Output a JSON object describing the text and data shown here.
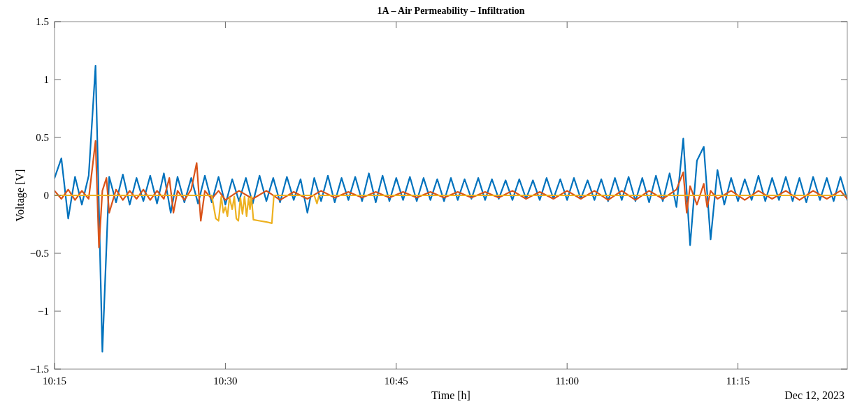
{
  "chart_data": {
    "type": "line",
    "title": "1A – Air Permeability – Infiltration",
    "xlabel": "Time [h]",
    "ylabel": "Voltage [V]",
    "annotations": [
      "Dec 12, 2023"
    ],
    "xlim": [
      10.25,
      11.41
    ],
    "ylim": [
      -1.5,
      1.5
    ],
    "xticks": [
      {
        "value": 10.25,
        "label": "10:15"
      },
      {
        "value": 10.5,
        "label": "10:30"
      },
      {
        "value": 10.75,
        "label": "10:45"
      },
      {
        "value": 11,
        "label": "11:00"
      },
      {
        "value": 11.25,
        "label": "11:15"
      }
    ],
    "yticks": [
      {
        "value": -1.5,
        "label": "−1.5"
      },
      {
        "value": -1,
        "label": "−1"
      },
      {
        "value": -0.5,
        "label": "−0.5"
      },
      0,
      0.5,
      1,
      1.5
    ],
    "grid": false,
    "line_style": "solid",
    "marker": "none",
    "series": [
      {
        "color": "#0072bd",
        "x": [
          10.25,
          10.26,
          10.27,
          10.28,
          10.29,
          10.3,
          10.31,
          10.32,
          10.33,
          10.34,
          10.35,
          10.36,
          10.37,
          10.38,
          10.39,
          10.4,
          10.41,
          10.42,
          10.43,
          10.44,
          10.45,
          10.46,
          10.47,
          10.48,
          10.49,
          10.5,
          10.51,
          10.52,
          10.53,
          10.54,
          10.55,
          10.56,
          10.57,
          10.58,
          10.59,
          10.6,
          10.61,
          10.62,
          10.63,
          10.64,
          10.65,
          10.66,
          10.67,
          10.68,
          10.69,
          10.7,
          10.71,
          10.72,
          10.73,
          10.74,
          10.75,
          10.76,
          10.77,
          10.78,
          10.79,
          10.8,
          10.81,
          10.82,
          10.83,
          10.84,
          10.85,
          10.86,
          10.87,
          10.88,
          10.89,
          10.9,
          10.91,
          10.92,
          10.93,
          10.94,
          10.95,
          10.96,
          10.97,
          10.98,
          10.99,
          11,
          11.01,
          11.02,
          11.03,
          11.04,
          11.05,
          11.06,
          11.07,
          11.08,
          11.09,
          11.1,
          11.11,
          11.12,
          11.13,
          11.14,
          11.15,
          11.16,
          11.17,
          11.18,
          11.19,
          11.2,
          11.21,
          11.22,
          11.23,
          11.24,
          11.25,
          11.26,
          11.27,
          11.28,
          11.29,
          11.3,
          11.31,
          11.32,
          11.33,
          11.34,
          11.35,
          11.36,
          11.37,
          11.38,
          11.39,
          11.4,
          11.41
        ],
        "values": [
          0.15,
          0.32,
          -0.2,
          0.16,
          -0.08,
          0.17,
          1.12,
          -1.35,
          0.16,
          -0.06,
          0.18,
          -0.08,
          0.15,
          -0.05,
          0.17,
          -0.07,
          0.19,
          -0.15,
          0.16,
          -0.06,
          0.15,
          -0.07,
          0.17,
          -0.06,
          0.16,
          -0.08,
          0.14,
          -0.05,
          0.15,
          -0.07,
          0.17,
          -0.05,
          0.15,
          -0.06,
          0.16,
          -0.04,
          0.14,
          -0.15,
          0.15,
          -0.05,
          0.17,
          -0.06,
          0.15,
          -0.04,
          0.16,
          -0.05,
          0.19,
          -0.06,
          0.17,
          -0.05,
          0.15,
          -0.04,
          0.16,
          -0.05,
          0.15,
          -0.04,
          0.14,
          -0.05,
          0.15,
          -0.04,
          0.14,
          -0.03,
          0.15,
          -0.04,
          0.14,
          -0.03,
          0.13,
          -0.04,
          0.14,
          -0.03,
          0.13,
          -0.04,
          0.15,
          -0.03,
          0.14,
          -0.04,
          0.15,
          -0.03,
          0.13,
          -0.04,
          0.14,
          -0.05,
          0.15,
          -0.04,
          0.16,
          -0.05,
          0.15,
          -0.06,
          0.17,
          -0.05,
          0.19,
          -0.1,
          0.49,
          -0.43,
          0.3,
          0.42,
          -0.38,
          0.22,
          -0.08,
          0.15,
          -0.05,
          0.14,
          -0.04,
          0.17,
          -0.05,
          0.15,
          -0.04,
          0.16,
          -0.05,
          0.15,
          -0.06,
          0.16,
          -0.04,
          0.15,
          -0.05,
          0.16,
          -0.04
        ]
      },
      {
        "color": "#d95319",
        "x": [
          10.25,
          10.26,
          10.27,
          10.28,
          10.29,
          10.3,
          10.31,
          10.315,
          10.32,
          10.326,
          10.33,
          10.34,
          10.35,
          10.36,
          10.37,
          10.38,
          10.39,
          10.4,
          10.41,
          10.418,
          10.424,
          10.43,
          10.44,
          10.45,
          10.458,
          10.464,
          10.47,
          10.48,
          10.49,
          10.5,
          10.52,
          10.54,
          10.56,
          10.58,
          10.6,
          10.62,
          10.64,
          10.66,
          10.68,
          10.7,
          10.72,
          10.74,
          10.76,
          10.78,
          10.8,
          10.82,
          10.84,
          10.86,
          10.88,
          10.9,
          10.92,
          10.94,
          10.96,
          10.98,
          11,
          11.02,
          11.04,
          11.06,
          11.08,
          11.1,
          11.12,
          11.14,
          11.16,
          11.17,
          11.175,
          11.18,
          11.19,
          11.2,
          11.205,
          11.21,
          11.22,
          11.24,
          11.26,
          11.28,
          11.3,
          11.32,
          11.34,
          11.36,
          11.38,
          11.4,
          11.41
        ],
        "values": [
          0.04,
          -0.03,
          0.05,
          -0.04,
          0.04,
          -0.03,
          0.47,
          -0.45,
          0.04,
          0.15,
          -0.15,
          0.05,
          -0.04,
          0.04,
          -0.03,
          0.05,
          -0.04,
          0.04,
          -0.03,
          0.15,
          -0.15,
          0.04,
          -0.04,
          0.05,
          0.28,
          -0.22,
          0.04,
          -0.03,
          0.04,
          -0.04,
          0.04,
          -0.03,
          0.04,
          -0.04,
          0.03,
          -0.03,
          0.04,
          -0.02,
          0.03,
          -0.02,
          0.03,
          -0.02,
          0.03,
          -0.02,
          0.03,
          -0.02,
          0.03,
          -0.02,
          0.03,
          -0.02,
          0.04,
          -0.03,
          0.03,
          -0.03,
          0.04,
          -0.03,
          0.04,
          -0.04,
          0.04,
          -0.04,
          0.04,
          -0.03,
          0.05,
          0.2,
          -0.15,
          0.08,
          -0.08,
          0.1,
          -0.1,
          0.04,
          -0.03,
          0.04,
          -0.04,
          0.04,
          -0.03,
          0.04,
          -0.04,
          0.04,
          -0.03,
          0.04,
          -0.03
        ]
      },
      {
        "color": "#edb120",
        "x": [
          10.25,
          10.48,
          10.486,
          10.49,
          10.494,
          10.497,
          10.5,
          10.503,
          10.506,
          10.51,
          10.513,
          10.516,
          10.519,
          10.522,
          10.525,
          10.528,
          10.531,
          10.534,
          10.536,
          10.538,
          10.541,
          10.55,
          10.56,
          10.568,
          10.571,
          10.63,
          10.634,
          10.637,
          11.41
        ],
        "values": [
          0,
          0,
          -0.2,
          -0.22,
          -0.01,
          -0.15,
          -0.1,
          -0.18,
          -0.02,
          -0.12,
          -0.01,
          -0.2,
          -0.22,
          -0.02,
          -0.16,
          -0.01,
          -0.18,
          -0.02,
          -0.12,
          -0.01,
          -0.21,
          -0.22,
          -0.23,
          -0.24,
          0,
          0,
          -0.07,
          0,
          0
        ]
      }
    ]
  }
}
